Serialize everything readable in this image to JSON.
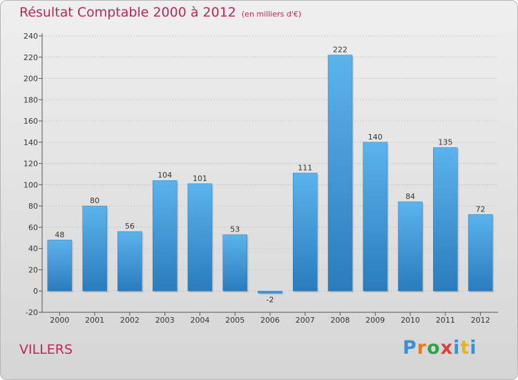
{
  "header": {
    "title": "Résultat Comptable 2000 à 2012",
    "subtitle": "(en milliers d'€)"
  },
  "footer": {
    "place": "VILLERS",
    "logo_letters": [
      "P",
      "r",
      "o",
      "x",
      "i",
      "t",
      "i"
    ],
    "logo_colors": [
      "#3a8fd6",
      "#e8792b",
      "#2fa24a",
      "#e23c3c",
      "#3a8fd6",
      "#e8b51e",
      "#3a8fd6"
    ]
  },
  "chart_data": {
    "type": "bar",
    "title": "Résultat Comptable 2000 à 2012",
    "categories": [
      "2000",
      "2001",
      "2002",
      "2003",
      "2004",
      "2005",
      "2006",
      "2007",
      "2008",
      "2009",
      "2010",
      "2011",
      "2012"
    ],
    "values": [
      48,
      80,
      56,
      104,
      101,
      53,
      -2,
      111,
      222,
      140,
      84,
      135,
      72
    ],
    "yticks": [
      -20,
      0,
      20,
      40,
      60,
      80,
      100,
      120,
      140,
      160,
      180,
      200,
      220,
      240
    ],
    "ylim": [
      -20,
      240
    ],
    "xlabel": "",
    "ylabel": "",
    "bar_color": "#4ea7e3",
    "grid": true
  }
}
